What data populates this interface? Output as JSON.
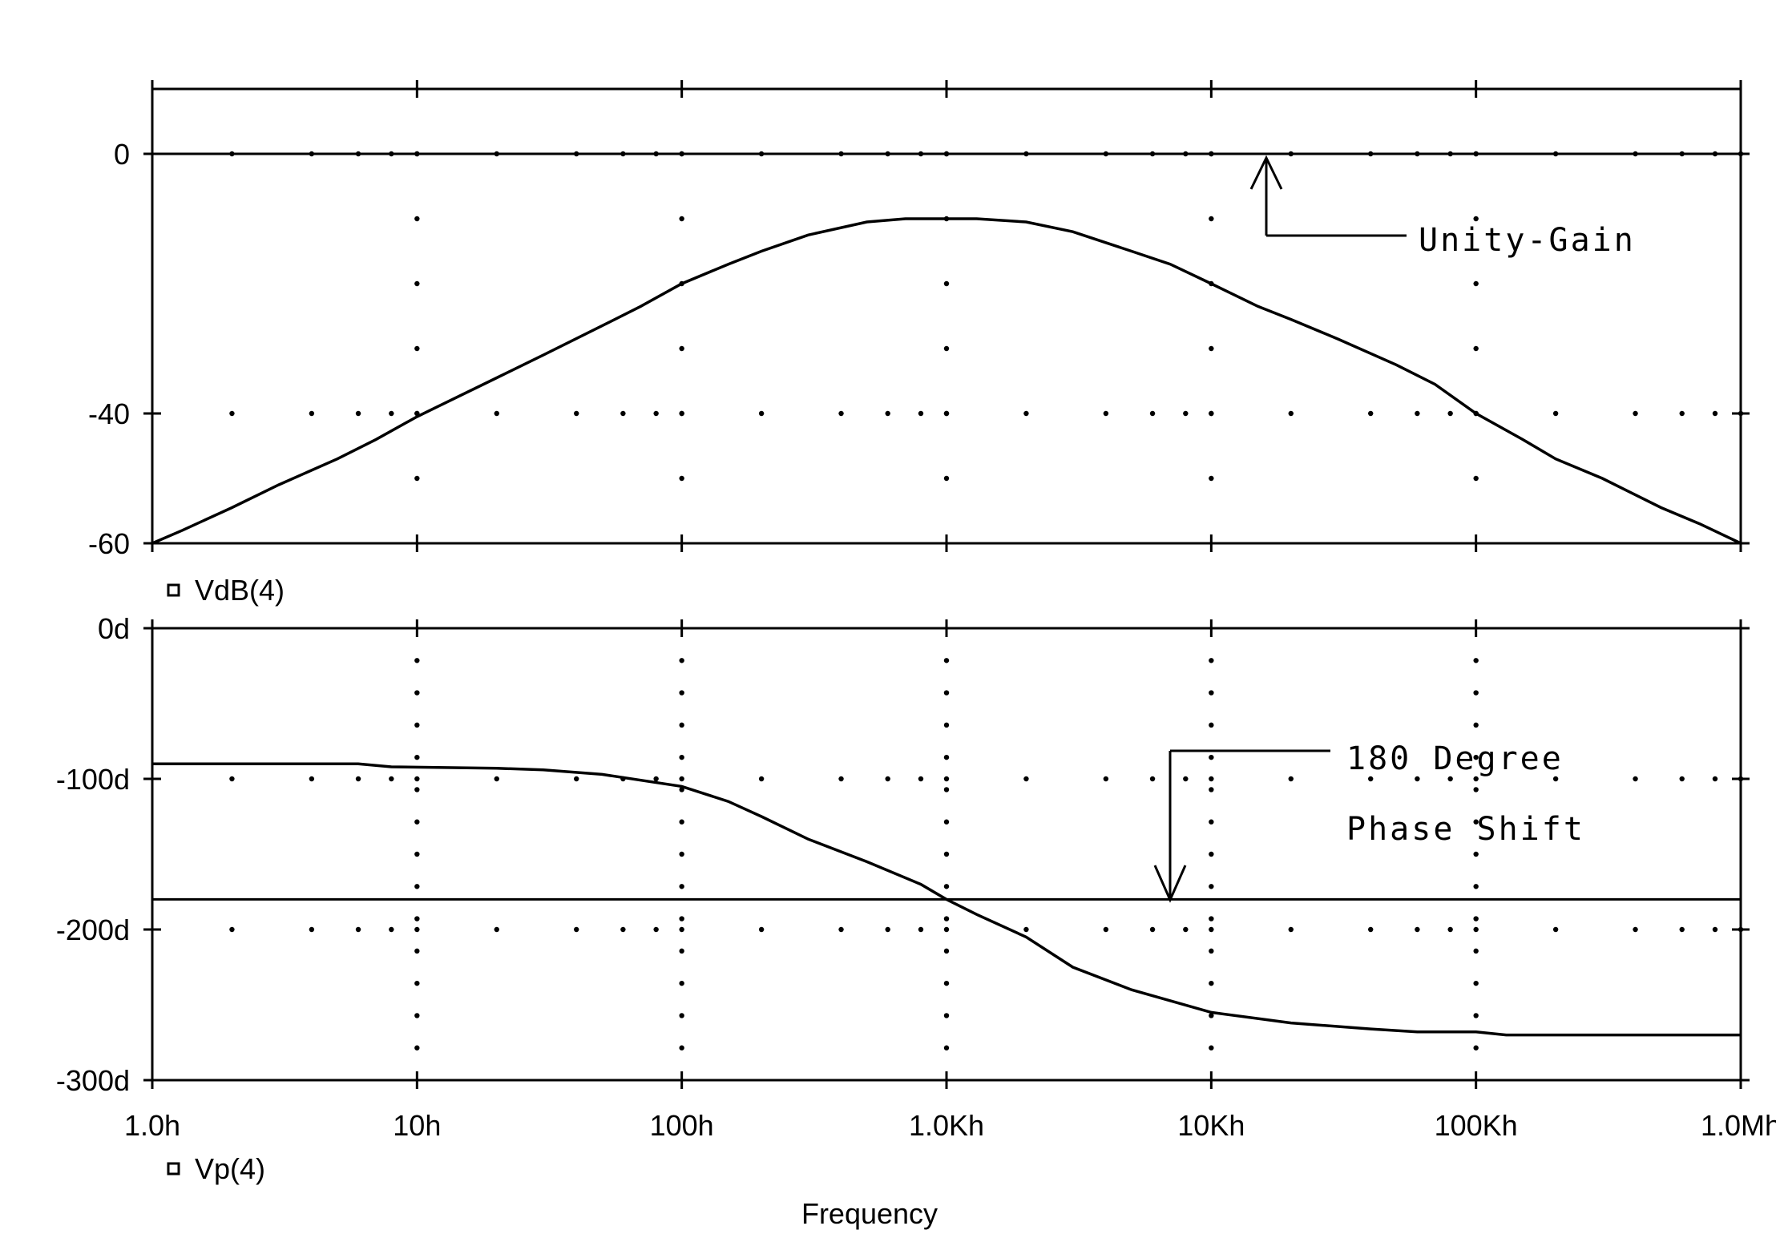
{
  "chart_data": [
    {
      "type": "line",
      "x_scale": "log",
      "xlim": [
        1,
        1000000
      ],
      "ylim": [
        -60,
        10
      ],
      "y_ticks": [
        {
          "value": 0,
          "label": "0"
        },
        {
          "value": -40,
          "label": "-40"
        },
        {
          "value": -60,
          "label": "-60"
        }
      ],
      "grid": "dotted",
      "series": [
        {
          "name": "VdB(4)",
          "x": [
            1,
            1.3,
            2,
            3,
            5,
            7,
            10,
            20,
            30,
            50,
            70,
            100,
            150,
            200,
            300,
            500,
            700,
            1000,
            1300,
            2000,
            3000,
            5000,
            7000,
            10000,
            15000,
            20000,
            30000,
            50000,
            70000,
            100000,
            150000,
            200000,
            300000,
            500000,
            700000,
            1000000
          ],
          "y": [
            -60,
            -58,
            -54.5,
            -51,
            -47,
            -44,
            -40.5,
            -34.5,
            -31,
            -26.5,
            -23.5,
            -20,
            -17,
            -15,
            -12.5,
            -10.5,
            -10,
            -10,
            -10,
            -10.5,
            -12,
            -15,
            -17,
            -20,
            -23.5,
            -25.5,
            -28.5,
            -32.5,
            -35.5,
            -40,
            -44,
            -47,
            -50,
            -54.5,
            -57,
            -60
          ]
        }
      ],
      "annotations": [
        {
          "text": "Unity-Gain",
          "y": 0
        }
      ]
    },
    {
      "type": "line",
      "x_scale": "log",
      "xlim": [
        1,
        1000000
      ],
      "ylim": [
        -300,
        0
      ],
      "x_ticks": [
        {
          "value": 1,
          "label": "1.0h"
        },
        {
          "value": 10,
          "label": "10h"
        },
        {
          "value": 100,
          "label": "100h"
        },
        {
          "value": 1000,
          "label": "1.0Kh"
        },
        {
          "value": 10000,
          "label": "10Kh"
        },
        {
          "value": 100000,
          "label": "100Kh"
        },
        {
          "value": 1000000,
          "label": "1.0Mh"
        }
      ],
      "y_ticks": [
        {
          "value": 0,
          "label": "0d"
        },
        {
          "value": -100,
          "label": "-100d"
        },
        {
          "value": -200,
          "label": "-200d"
        },
        {
          "value": -300,
          "label": "-300d"
        }
      ],
      "xlabel": "Frequency",
      "grid": "dotted",
      "series": [
        {
          "name": "Vp(4)",
          "x": [
            1,
            6,
            8,
            20,
            30,
            50,
            100,
            150,
            200,
            300,
            500,
            800,
            1000,
            1300,
            2000,
            3000,
            5000,
            10000,
            20000,
            40000,
            60000,
            100000,
            130000,
            1000000
          ],
          "y": [
            -90,
            -90,
            -92,
            -93,
            -94,
            -97,
            -105,
            -115,
            -125,
            -140,
            -155,
            -170,
            -180,
            -190,
            -205,
            -225,
            -240,
            -255,
            -262,
            -266,
            -268,
            -268,
            -270,
            -270
          ]
        }
      ],
      "annotations": [
        {
          "text": "180 Degree",
          "y": -180
        },
        {
          "text": "Phase Shift",
          "y": -180
        }
      ]
    }
  ],
  "colors": {
    "line": "#000000",
    "background": "#ffffff"
  }
}
